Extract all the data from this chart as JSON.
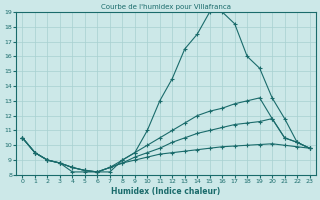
{
  "title": "Courbe de l'humidex pour Villafranca",
  "xlabel": "Humidex (Indice chaleur)",
  "background_color": "#cce8e8",
  "line_color": "#1a6b6b",
  "grid_color": "#a8d0d0",
  "xlim": [
    -0.5,
    23.5
  ],
  "ylim": [
    8,
    19
  ],
  "yticks": [
    8,
    9,
    10,
    11,
    12,
    13,
    14,
    15,
    16,
    17,
    18,
    19
  ],
  "xticks": [
    0,
    1,
    2,
    3,
    4,
    5,
    6,
    7,
    8,
    9,
    10,
    11,
    12,
    13,
    14,
    15,
    16,
    17,
    18,
    19,
    20,
    21,
    22,
    23
  ],
  "curves": [
    {
      "x": [
        0,
        1,
        2,
        3,
        4,
        5,
        6,
        7,
        8,
        9,
        10,
        11,
        12,
        13,
        14,
        15,
        16,
        17,
        18,
        19,
        20,
        21,
        22,
        23
      ],
      "y": [
        10.5,
        9.5,
        9.0,
        8.8,
        8.2,
        8.2,
        8.2,
        8.2,
        9.0,
        9.5,
        11.0,
        13.0,
        14.5,
        16.5,
        17.5,
        19.0,
        19.0,
        18.2,
        16.0,
        15.2,
        13.2,
        11.8,
        10.2,
        9.8
      ]
    },
    {
      "x": [
        0,
        1,
        2,
        3,
        4,
        5,
        6,
        7,
        8,
        9,
        10,
        11,
        12,
        13,
        14,
        15,
        16,
        17,
        18,
        19,
        20,
        21,
        22,
        23
      ],
      "y": [
        10.5,
        9.5,
        9.0,
        8.8,
        8.5,
        8.3,
        8.2,
        8.5,
        9.0,
        9.5,
        10.0,
        10.5,
        11.0,
        11.5,
        12.0,
        12.3,
        12.5,
        12.8,
        13.0,
        13.2,
        11.8,
        10.5,
        10.2,
        9.8
      ]
    },
    {
      "x": [
        0,
        1,
        2,
        3,
        4,
        5,
        6,
        7,
        8,
        9,
        10,
        11,
        12,
        13,
        14,
        15,
        16,
        17,
        18,
        19,
        20,
        21,
        22,
        23
      ],
      "y": [
        10.5,
        9.5,
        9.0,
        8.8,
        8.5,
        8.3,
        8.2,
        8.5,
        8.8,
        9.2,
        9.5,
        9.8,
        10.2,
        10.5,
        10.8,
        11.0,
        11.2,
        11.4,
        11.5,
        11.6,
        11.8,
        10.5,
        10.2,
        9.8
      ]
    },
    {
      "x": [
        0,
        1,
        2,
        3,
        4,
        5,
        6,
        7,
        8,
        9,
        10,
        11,
        12,
        13,
        14,
        15,
        16,
        17,
        18,
        19,
        20,
        21,
        22,
        23
      ],
      "y": [
        10.5,
        9.5,
        9.0,
        8.8,
        8.5,
        8.3,
        8.2,
        8.5,
        8.8,
        9.0,
        9.2,
        9.4,
        9.5,
        9.6,
        9.7,
        9.8,
        9.9,
        9.95,
        10.0,
        10.05,
        10.1,
        10.0,
        9.9,
        9.8
      ]
    }
  ]
}
